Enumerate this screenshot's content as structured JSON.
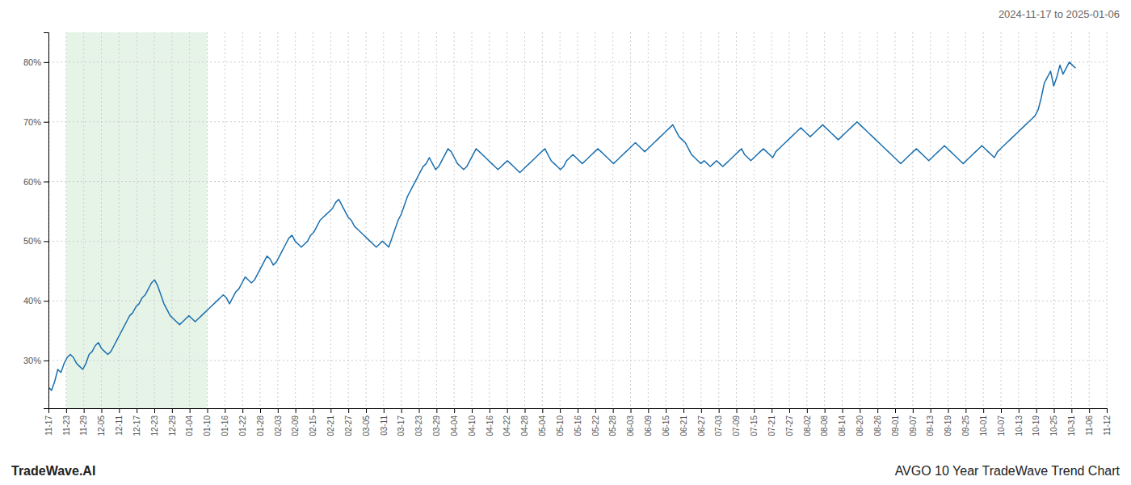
{
  "chart_data": {
    "type": "line",
    "title": "AVGO 10 Year TradeWave Trend Chart",
    "subtitle": "2024-11-17 to 2025-01-06",
    "annotations": [
      "TradeWave.AI"
    ],
    "color": "#1a6faf",
    "grid": true,
    "xlim": [
      0,
      339
    ],
    "xticks": [
      {
        "value": 0,
        "label": "11-17"
      },
      {
        "value": 5.65,
        "label": "11-23"
      },
      {
        "value": 11.3,
        "label": "11-29"
      },
      {
        "value": 16.95,
        "label": "12-05"
      },
      {
        "value": 22.6,
        "label": "12-11"
      },
      {
        "value": 28.25,
        "label": "12-17"
      },
      {
        "value": 33.9,
        "label": "12-23"
      },
      {
        "value": 39.55,
        "label": "12-29"
      },
      {
        "value": 45.2,
        "label": "01-04"
      },
      {
        "value": 50.85,
        "label": "01-10"
      },
      {
        "value": 56.5,
        "label": "01-16"
      },
      {
        "value": 62.15,
        "label": "01-22"
      },
      {
        "value": 67.8,
        "label": "01-28"
      },
      {
        "value": 73.45,
        "label": "02-03"
      },
      {
        "value": 79.1,
        "label": "02-09"
      },
      {
        "value": 84.75,
        "label": "02-15"
      },
      {
        "value": 90.4,
        "label": "02-21"
      },
      {
        "value": 96.05,
        "label": "02-27"
      },
      {
        "value": 101.7,
        "label": "03-05"
      },
      {
        "value": 107.35,
        "label": "03-11"
      },
      {
        "value": 113,
        "label": "03-17"
      },
      {
        "value": 118.65,
        "label": "03-23"
      },
      {
        "value": 124.3,
        "label": "03-29"
      },
      {
        "value": 129.95,
        "label": "04-04"
      },
      {
        "value": 135.6,
        "label": "04-10"
      },
      {
        "value": 141.25,
        "label": "04-16"
      },
      {
        "value": 146.9,
        "label": "04-22"
      },
      {
        "value": 152.55,
        "label": "04-28"
      },
      {
        "value": 158.2,
        "label": "05-04"
      },
      {
        "value": 163.85,
        "label": "05-10"
      },
      {
        "value": 169.5,
        "label": "05-16"
      },
      {
        "value": 175.15,
        "label": "05-22"
      },
      {
        "value": 180.8,
        "label": "05-28"
      },
      {
        "value": 186.45,
        "label": "06-03"
      },
      {
        "value": 192.1,
        "label": "06-09"
      },
      {
        "value": 197.75,
        "label": "06-15"
      },
      {
        "value": 203.4,
        "label": "06-21"
      },
      {
        "value": 209.05,
        "label": "06-27"
      },
      {
        "value": 214.7,
        "label": "07-03"
      },
      {
        "value": 220.35,
        "label": "07-09"
      },
      {
        "value": 226,
        "label": "07-15"
      },
      {
        "value": 231.65,
        "label": "07-21"
      },
      {
        "value": 237.3,
        "label": "07-27"
      },
      {
        "value": 242.95,
        "label": "08-02"
      },
      {
        "value": 248.6,
        "label": "08-08"
      },
      {
        "value": 254.25,
        "label": "08-14"
      },
      {
        "value": 259.9,
        "label": "08-20"
      },
      {
        "value": 265.55,
        "label": "08-26"
      },
      {
        "value": 271.2,
        "label": "09-01"
      },
      {
        "value": 276.85,
        "label": "09-07"
      },
      {
        "value": 282.5,
        "label": "09-13"
      },
      {
        "value": 288.15,
        "label": "09-19"
      },
      {
        "value": 293.8,
        "label": "09-25"
      },
      {
        "value": 299.45,
        "label": "10-01"
      },
      {
        "value": 305.1,
        "label": "10-07"
      },
      {
        "value": 310.75,
        "label": "10-13"
      },
      {
        "value": 316.4,
        "label": "10-19"
      },
      {
        "value": 322.05,
        "label": "10-25"
      },
      {
        "value": 327.7,
        "label": "10-31"
      },
      {
        "value": 333.35,
        "label": "11-06"
      },
      {
        "value": 339,
        "label": "11-12"
      }
    ],
    "ylim": [
      22,
      85
    ],
    "yticks": [
      {
        "value": 30,
        "label": "30%"
      },
      {
        "value": 40,
        "label": "40%"
      },
      {
        "value": 50,
        "label": "50%"
      },
      {
        "value": 60,
        "label": "60%"
      },
      {
        "value": 70,
        "label": "70%"
      },
      {
        "value": 80,
        "label": "80%"
      }
    ],
    "highlight": {
      "from": 5.65,
      "to": 50.85,
      "color": "#c8e6c9"
    },
    "values": [
      25.5,
      25.0,
      26.5,
      28.5,
      28.0,
      29.5,
      30.5,
      31.0,
      30.5,
      29.5,
      29.0,
      28.5,
      29.5,
      31.0,
      31.5,
      32.5,
      33.0,
      32.0,
      31.5,
      31.0,
      31.5,
      32.5,
      33.5,
      34.5,
      35.5,
      36.5,
      37.5,
      38.0,
      39.0,
      39.5,
      40.5,
      41.0,
      42.0,
      43.0,
      43.5,
      42.5,
      41.0,
      39.5,
      38.5,
      37.5,
      37.0,
      36.5,
      36.0,
      36.5,
      37.0,
      37.5,
      37.0,
      36.5,
      37.0,
      37.5,
      38.0,
      38.5,
      39.0,
      39.5,
      40.0,
      40.5,
      41.0,
      40.5,
      39.5,
      40.5,
      41.5,
      42.0,
      43.0,
      44.0,
      43.5,
      43.0,
      43.5,
      44.5,
      45.5,
      46.5,
      47.5,
      47.0,
      46.0,
      46.5,
      47.5,
      48.5,
      49.5,
      50.5,
      51.0,
      50.0,
      49.5,
      49.0,
      49.5,
      50.0,
      51.0,
      51.5,
      52.5,
      53.5,
      54.0,
      54.5,
      55.0,
      55.5,
      56.5,
      57.0,
      56.0,
      55.0,
      54.0,
      53.5,
      52.5,
      52.0,
      51.5,
      51.0,
      50.5,
      50.0,
      49.5,
      49.0,
      49.5,
      50.0,
      49.5,
      49.0,
      50.5,
      52.0,
      53.5,
      54.5,
      56.0,
      57.5,
      58.5,
      59.5,
      60.5,
      61.5,
      62.5,
      63.0,
      64.0,
      63.0,
      62.0,
      62.5,
      63.5,
      64.5,
      65.5,
      65.0,
      64.0,
      63.0,
      62.5,
      62.0,
      62.5,
      63.5,
      64.5,
      65.5,
      65.0,
      64.5,
      64.0,
      63.5,
      63.0,
      62.5,
      62.0,
      62.5,
      63.0,
      63.5,
      63.0,
      62.5,
      62.0,
      61.5,
      62.0,
      62.5,
      63.0,
      63.5,
      64.0,
      64.5,
      65.0,
      65.5,
      64.5,
      63.5,
      63.0,
      62.5,
      62.0,
      62.5,
      63.5,
      64.0,
      64.5,
      64.0,
      63.5,
      63.0,
      63.5,
      64.0,
      64.5,
      65.0,
      65.5,
      65.0,
      64.5,
      64.0,
      63.5,
      63.0,
      63.5,
      64.0,
      64.5,
      65.0,
      65.5,
      66.0,
      66.5,
      66.0,
      65.5,
      65.0,
      65.5,
      66.0,
      66.5,
      67.0,
      67.5,
      68.0,
      68.5,
      69.0,
      69.5,
      68.5,
      67.5,
      67.0,
      66.5,
      65.5,
      64.5,
      64.0,
      63.5,
      63.0,
      63.5,
      63.0,
      62.5,
      63.0,
      63.5,
      63.0,
      62.5,
      63.0,
      63.5,
      64.0,
      64.5,
      65.0,
      65.5,
      64.5,
      64.0,
      63.5,
      64.0,
      64.5,
      65.0,
      65.5,
      65.0,
      64.5,
      64.0,
      65.0,
      65.5,
      66.0,
      66.5,
      67.0,
      67.5,
      68.0,
      68.5,
      69.0,
      68.5,
      68.0,
      67.5,
      68.0,
      68.5,
      69.0,
      69.5,
      69.0,
      68.5,
      68.0,
      67.5,
      67.0,
      67.5,
      68.0,
      68.5,
      69.0,
      69.5,
      70.0,
      69.5,
      69.0,
      68.5,
      68.0,
      67.5,
      67.0,
      66.5,
      66.0,
      65.5,
      65.0,
      64.5,
      64.0,
      63.5,
      63.0,
      63.5,
      64.0,
      64.5,
      65.0,
      65.5,
      65.0,
      64.5,
      64.0,
      63.5,
      64.0,
      64.5,
      65.0,
      65.5,
      66.0,
      65.5,
      65.0,
      64.5,
      64.0,
      63.5,
      63.0,
      63.5,
      64.0,
      64.5,
      65.0,
      65.5,
      66.0,
      65.5,
      65.0,
      64.5,
      64.0,
      65.0,
      65.5,
      66.0,
      66.5,
      67.0,
      67.5,
      68.0,
      68.5,
      69.0,
      69.5,
      70.0,
      70.5,
      71.0,
      72.0,
      74.0,
      76.5,
      77.5,
      78.5,
      76.0,
      77.5,
      79.5,
      78.0,
      79.0,
      80.0,
      79.5,
      79.0
    ]
  }
}
